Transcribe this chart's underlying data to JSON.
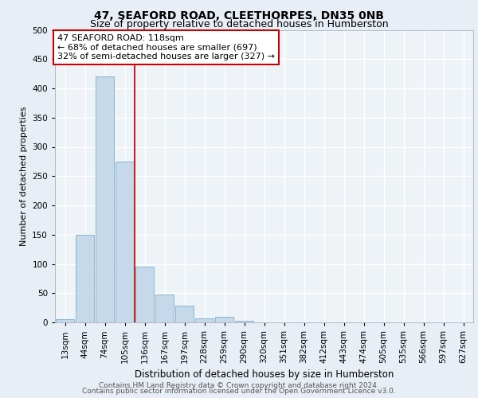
{
  "title": "47, SEAFORD ROAD, CLEETHORPES, DN35 0NB",
  "subtitle": "Size of property relative to detached houses in Humberston",
  "xlabel": "Distribution of detached houses by size in Humberston",
  "ylabel": "Number of detached properties",
  "footer_line1": "Contains HM Land Registry data © Crown copyright and database right 2024.",
  "footer_line2": "Contains public sector information licensed under the Open Government Licence v3.0.",
  "bar_labels": [
    "13sqm",
    "44sqm",
    "74sqm",
    "105sqm",
    "136sqm",
    "167sqm",
    "197sqm",
    "228sqm",
    "259sqm",
    "290sqm",
    "320sqm",
    "351sqm",
    "382sqm",
    "412sqm",
    "443sqm",
    "474sqm",
    "505sqm",
    "535sqm",
    "566sqm",
    "597sqm",
    "627sqm"
  ],
  "bar_values": [
    5,
    150,
    420,
    275,
    95,
    48,
    28,
    7,
    10,
    3,
    0,
    0,
    0,
    0,
    0,
    0,
    0,
    0,
    0,
    0,
    0
  ],
  "bar_color": "#c6d9ea",
  "bar_edge_color": "#7aafc8",
  "red_line_x": 3.48,
  "annotation_line1": "47 SEAFORD ROAD: 118sqm",
  "annotation_line2": "← 68% of detached houses are smaller (697)",
  "annotation_line3": "32% of semi-detached houses are larger (327) →",
  "annotation_box_facecolor": "#ffffff",
  "annotation_box_edgecolor": "#cc0000",
  "ylim": [
    0,
    500
  ],
  "yticks": [
    0,
    50,
    100,
    150,
    200,
    250,
    300,
    350,
    400,
    450,
    500
  ],
  "fig_bg_color": "#e8eef5",
  "plot_bg_color": "#eef3f8",
  "grid_color": "#ffffff",
  "title_fontsize": 10,
  "subtitle_fontsize": 9,
  "ylabel_fontsize": 8,
  "xlabel_fontsize": 8.5,
  "tick_fontsize": 7.5,
  "annotation_fontsize": 8,
  "footer_fontsize": 6.5
}
